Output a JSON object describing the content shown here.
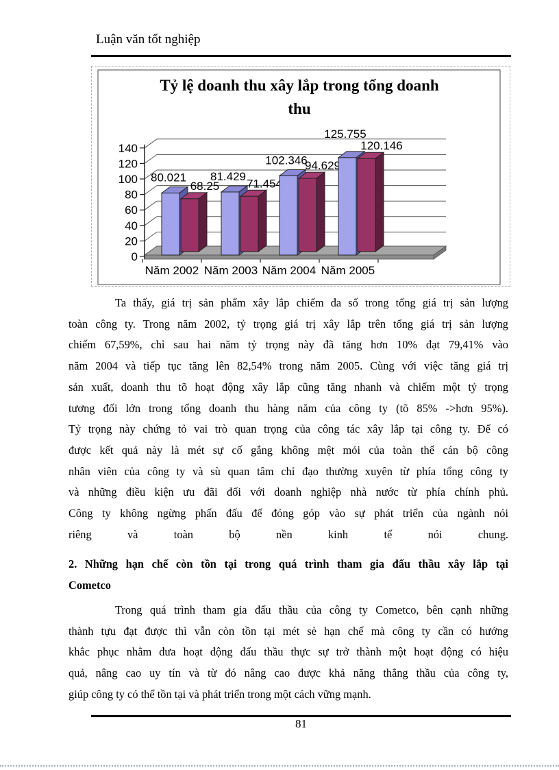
{
  "header": {
    "title": "Luận văn tốt nghiệp"
  },
  "chart_data": {
    "type": "bar",
    "style": "3d-clustered-column",
    "title": "Tỷ lệ doanh thu xây lắp trong tổng doanh thu",
    "title_lines": [
      "Tỷ lệ doanh thu xây lắp trong tổng doanh",
      "thu"
    ],
    "categories": [
      "Năm 2002",
      "Năm 2003",
      "Năm 2004",
      "Năm 2005"
    ],
    "series": [
      {
        "name": "series-1-blue",
        "color_hex": "#A3A3EC",
        "values": [
          80.021,
          81.429,
          102.346,
          125.755
        ]
      },
      {
        "name": "series-2-maroon",
        "color_hex": "#993366",
        "values": [
          68.25,
          71.454,
          94.629,
          120.146
        ]
      }
    ],
    "data_labels": [
      "80.021",
      "68.25",
      "81.429",
      "71.454",
      "102.346",
      "94.629",
      "125.755",
      "120.146"
    ],
    "yticks": [
      0,
      20,
      40,
      60,
      80,
      100,
      120,
      140
    ],
    "ylim": [
      0,
      140
    ],
    "grid": true,
    "legend": "none",
    "floor_color": "#A6A6A6"
  },
  "body": {
    "paragraph1": {
      "indent_first": true,
      "last_align": "justify",
      "lines": [
        "Ta thấy, giá trị sản phẩm xây lắp chiếm đa số trong tổng giá trị sản lượng",
        "toàn công ty. Trong năm 2002, tỷ trọng giá trị xây lắp trên tổng giá trị sản lượng",
        "chiếm 67,59%, chỉ sau hai năm tỷ trọng này đã tăng hơn 10% đạt 79,41% vào",
        "năm 2004 và tiếp tục tăng lên 82,54% trong năm 2005. Cùng với việc tăng giá trị",
        "sản xuất, doanh thu tõ hoạt động xây lắp cũng tăng nhanh và chiếm một tỷ trọng",
        "tương đối lớn trong tổng doanh thu hàng năm của công ty (tõ 85% ->hơn 95%).",
        "Tỷ trọng này chứng tỏ vai trò quan trọng của công tác xây lắp tại công ty. Để có",
        "được kết quả này là mét sự cố gắng không mệt mỏi của toàn thể cán bộ công",
        "nhân viên của công ty và sù quan tâm chỉ đạo thường xuyên từ phía tổng công ty",
        "và những điều kiện ưu đãi đối với doanh nghiệp nhà nước từ phía chính phủ.",
        "Công ty không ngừng phấn đấu để đóng góp vào sự phát triển của ngành nói",
        "riêng và toàn bộ nền kinh tế nói chung."
      ]
    },
    "heading2": {
      "indent_first": false,
      "last_align": "left",
      "lines": [
        "2. Những hạn chế còn tồn tại trong quá trình tham gia đấu thầu xây lắp tại",
        "Cometco"
      ]
    },
    "paragraph2": {
      "indent_first": true,
      "last_align": "left",
      "lines": [
        "Trong quá trình tham gia đấu thầu của công ty Cometco, bên cạnh những",
        "thành tựu đạt được thì vẫn còn tồn tại mét sè hạn chế mà công ty cần có hướng",
        "khắc phục nhằm đưa hoạt động đấu thầu thực sự trở thành một hoạt động có hiệu",
        "quả, nâng cao uy tín và từ đó nâng cao được khả năng thắng thầu của công ty,",
        "giúp công ty có thể tồn tại và phát triển trong một cách vững mạnh."
      ]
    }
  },
  "footer": {
    "page_number": "81"
  }
}
